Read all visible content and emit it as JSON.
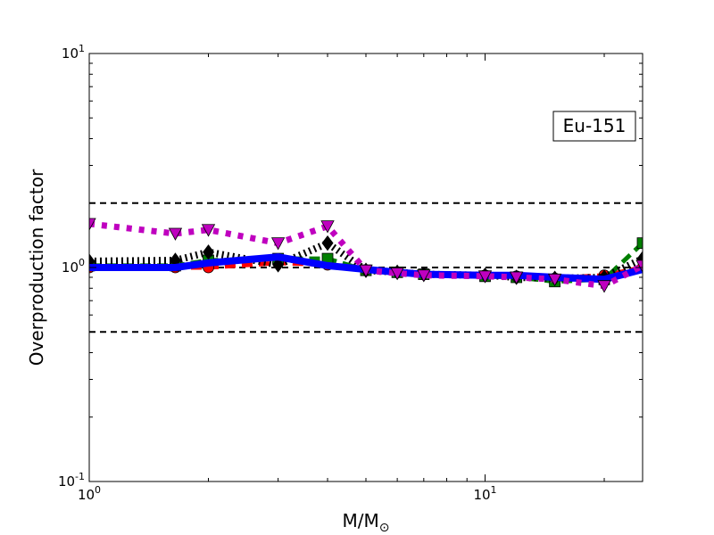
{
  "chart_data": {
    "type": "line",
    "title": "",
    "xlabel": "M/M",
    "xlabel_subscript": "⊙",
    "ylabel": "Overproduction factor",
    "xscale": "log",
    "yscale": "log",
    "xlim": [
      1,
      25
    ],
    "ylim": [
      0.1,
      10
    ],
    "x_ticks": [
      {
        "value": 1,
        "base": "10",
        "exp": "0"
      },
      {
        "value": 10,
        "base": "10",
        "exp": "1"
      }
    ],
    "y_ticks": [
      {
        "value": 0.1,
        "base": "10",
        "exp": "-1"
      },
      {
        "value": 1,
        "base": "10",
        "exp": "0"
      },
      {
        "value": 10,
        "base": "10",
        "exp": "1"
      }
    ],
    "annotation": "Eu-151",
    "annotation_position": "upper-right",
    "legend": "none",
    "grid": false,
    "reference_lines": [
      {
        "y": 2.0,
        "color": "#000000",
        "style": "dashed"
      },
      {
        "y": 1.0,
        "color": "#000000",
        "style": "dashed"
      },
      {
        "y": 0.5,
        "color": "#000000",
        "style": "dashed"
      }
    ],
    "series": [
      {
        "color": "#0000ff",
        "line_style": "solid",
        "marker": "none",
        "points": [
          [
            1,
            1.0
          ],
          [
            1.65,
            1.0
          ],
          [
            2,
            1.05
          ],
          [
            3,
            1.12
          ],
          [
            4,
            1.02
          ],
          [
            5,
            0.98
          ],
          [
            6,
            0.95
          ],
          [
            7,
            0.93
          ],
          [
            10,
            0.92
          ],
          [
            12,
            0.92
          ],
          [
            15,
            0.9
          ],
          [
            20,
            0.88
          ],
          [
            25,
            0.98
          ]
        ]
      },
      {
        "color": "#ff0000",
        "line_style": "dashed",
        "marker": "circle",
        "points": [
          [
            1,
            1.0
          ],
          [
            1.65,
            1.0
          ],
          [
            2,
            1.0
          ],
          [
            3,
            1.05
          ],
          [
            4,
            1.03
          ],
          [
            5,
            0.97
          ],
          [
            6,
            0.95
          ],
          [
            7,
            0.93
          ],
          [
            10,
            0.92
          ],
          [
            12,
            0.91
          ],
          [
            15,
            0.89
          ],
          [
            20,
            0.92
          ],
          [
            25,
            1.0
          ]
        ]
      },
      {
        "color": "#007f00",
        "line_style": "dashed",
        "marker": "square",
        "points": [
          [
            1,
            1.02
          ],
          [
            1.65,
            1.02
          ],
          [
            2,
            1.08
          ],
          [
            3,
            1.1
          ],
          [
            4,
            1.1
          ],
          [
            5,
            0.97
          ],
          [
            6,
            0.95
          ],
          [
            7,
            0.93
          ],
          [
            10,
            0.91
          ],
          [
            12,
            0.9
          ],
          [
            15,
            0.86
          ],
          [
            20,
            0.88
          ],
          [
            25,
            1.3
          ]
        ]
      },
      {
        "color": "#000000",
        "line_style": "dotted",
        "marker": "diamond",
        "points": [
          [
            1,
            1.07
          ],
          [
            1.65,
            1.08
          ],
          [
            2,
            1.18
          ],
          [
            3,
            1.03
          ],
          [
            4,
            1.3
          ],
          [
            5,
            0.97
          ],
          [
            6,
            0.95
          ],
          [
            7,
            0.93
          ],
          [
            10,
            0.92
          ],
          [
            12,
            0.9
          ],
          [
            15,
            0.89
          ],
          [
            20,
            0.9
          ],
          [
            25,
            1.1
          ]
        ]
      },
      {
        "color": "#bf00bf",
        "line_style": "dotted",
        "marker": "triangle-down",
        "points": [
          [
            1,
            1.6
          ],
          [
            1.65,
            1.44
          ],
          [
            2,
            1.5
          ],
          [
            3,
            1.3
          ],
          [
            4,
            1.56
          ],
          [
            5,
            0.97
          ],
          [
            6,
            0.94
          ],
          [
            7,
            0.92
          ],
          [
            10,
            0.91
          ],
          [
            12,
            0.9
          ],
          [
            15,
            0.88
          ],
          [
            20,
            0.82
          ],
          [
            25,
            1.02
          ]
        ]
      }
    ]
  }
}
